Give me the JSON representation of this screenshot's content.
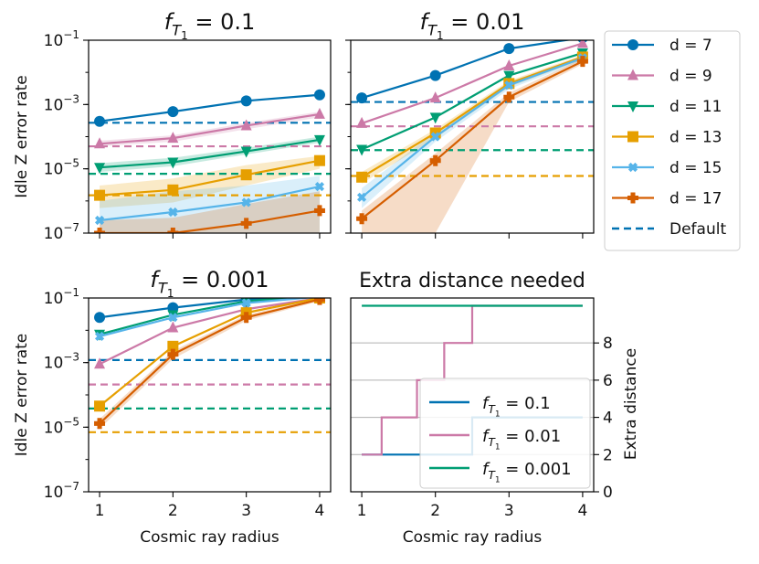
{
  "chart_data": [
    {
      "type": "line",
      "title": "f_{T_1} = 0.1",
      "title_parts": {
        "base": "f",
        "sub": "T",
        "subsub": "1",
        "rest": " = 0.1"
      },
      "xlabel": "",
      "ylabel": "Idle Z error rate",
      "y_scale": "log",
      "ylim": [
        1e-07,
        0.1
      ],
      "xlim": [
        0.85,
        4.15
      ],
      "x_ticks": [
        1,
        2,
        3,
        4
      ],
      "show_x_tick_labels": false,
      "y_ticks": [
        {
          "value": 1e-07,
          "mant": "10",
          "exp": "−7"
        },
        {
          "value": 1e-05,
          "mant": "10",
          "exp": "−5"
        },
        {
          "value": 0.001,
          "mant": "10",
          "exp": "−3"
        },
        {
          "value": 0.1,
          "mant": "10",
          "exp": "−1"
        }
      ],
      "series": [
        {
          "name": "d = 7",
          "key": "d7",
          "x": [
            1,
            2,
            3,
            4
          ],
          "y": [
            0.0003,
            0.0006,
            0.0013,
            0.002
          ],
          "band_low": null,
          "band_high": null,
          "default": 0.00027
        },
        {
          "name": "d = 9",
          "key": "d9",
          "x": [
            1,
            2,
            3,
            4
          ],
          "y": [
            6e-05,
            9e-05,
            0.00022,
            0.0005
          ],
          "band_low": [
            5e-05,
            7e-05,
            0.00017,
            0.0004
          ],
          "band_high": [
            7.5e-05,
            0.00011,
            0.00027,
            0.0006
          ],
          "default": 5e-05
        },
        {
          "name": "d = 11",
          "key": "d11",
          "x": [
            1,
            2,
            3,
            4
          ],
          "y": [
            1.1e-05,
            1.6e-05,
            3.5e-05,
            8e-05
          ],
          "band_low": [
            8e-06,
            1.2e-05,
            2.8e-05,
            6.5e-05
          ],
          "band_high": [
            1.5e-05,
            2.2e-05,
            4.5e-05,
            0.0001
          ],
          "default": 7e-06
        },
        {
          "name": "d = 13",
          "key": "d13",
          "x": [
            1,
            2,
            3,
            4
          ],
          "y": [
            1.5e-06,
            2.2e-06,
            6.5e-06,
            1.8e-05
          ],
          "band_low": [
            6e-07,
            9e-07,
            3e-06,
            1e-05
          ],
          "band_high": [
            3e-06,
            5e-06,
            1.3e-05,
            2.5e-05
          ],
          "default": 1.5e-06
        },
        {
          "name": "d = 15",
          "key": "d15",
          "x": [
            1,
            2,
            3,
            4
          ],
          "y": [
            2.5e-07,
            4.5e-07,
            9e-07,
            2.8e-06
          ],
          "band_low": [
            1e-07,
            1e-07,
            1e-07,
            1e-07
          ],
          "band_high": [
            1e-06,
            2e-06,
            3e-06,
            6e-06
          ],
          "default": null
        },
        {
          "name": "d = 17",
          "key": "d17",
          "x": [
            1,
            2,
            3,
            4
          ],
          "y": [
            1e-07,
            1e-07,
            2e-07,
            5e-07
          ],
          "band_low": [
            1e-07,
            1e-07,
            1e-07,
            1e-07
          ],
          "band_high": [
            2.5e-07,
            3e-07,
            8e-07,
            2e-06
          ],
          "default": null
        }
      ]
    },
    {
      "type": "line",
      "title": "f_{T_1} = 0.01",
      "title_parts": {
        "base": "f",
        "sub": "T",
        "subsub": "1",
        "rest": " = 0.01"
      },
      "xlabel": "",
      "ylabel": "",
      "y_scale": "log",
      "ylim": [
        1e-07,
        0.1
      ],
      "xlim": [
        0.85,
        4.15
      ],
      "x_ticks": [
        1,
        2,
        3,
        4
      ],
      "show_x_tick_labels": false,
      "show_y_tick_labels": false,
      "series": [
        {
          "name": "d = 7",
          "key": "d7",
          "x": [
            1,
            2,
            3,
            4
          ],
          "y": [
            0.0016,
            0.008,
            0.055,
            0.12
          ],
          "band_low": null,
          "band_high": null,
          "default": 0.0012
        },
        {
          "name": "d = 9",
          "key": "d9",
          "x": [
            1,
            2,
            3,
            4
          ],
          "y": [
            0.00026,
            0.0016,
            0.016,
            0.08
          ],
          "band_low": null,
          "band_high": null,
          "default": 0.00021
        },
        {
          "name": "d = 11",
          "key": "d11",
          "x": [
            1,
            2,
            3,
            4
          ],
          "y": [
            4e-05,
            0.0004,
            0.008,
            0.04
          ],
          "band_low": null,
          "band_high": null,
          "default": 3.8e-05
        },
        {
          "name": "d = 13",
          "key": "d13",
          "x": [
            1,
            2,
            3,
            4
          ],
          "y": [
            5.5e-06,
            0.00013,
            0.0045,
            0.03
          ],
          "band_low": [
            3.5e-06,
            9e-05,
            0.0035,
            0.025
          ],
          "band_high": [
            8e-06,
            0.00017,
            0.0055,
            0.035
          ],
          "default": 6e-06
        },
        {
          "name": "d = 15",
          "key": "d15",
          "x": [
            1,
            2,
            3,
            4
          ],
          "y": [
            1.3e-06,
            0.0001,
            0.004,
            0.028
          ],
          "band_low": [
            6e-07,
            7e-05,
            0.003,
            0.023
          ],
          "band_high": [
            2.5e-06,
            0.00014,
            0.005,
            0.033
          ],
          "default": null
        },
        {
          "name": "d = 17",
          "key": "d17",
          "x": [
            1,
            2,
            3,
            4
          ],
          "y": [
            2.8e-07,
            1.8e-05,
            0.0017,
            0.022
          ],
          "band_low": [
            1e-07,
            1e-07,
            0.0012,
            0.018
          ],
          "band_high": [
            5e-07,
            3e-05,
            0.0023,
            0.027
          ],
          "default": null
        }
      ]
    },
    {
      "type": "line",
      "title": "f_{T_1} = 0.001",
      "title_parts": {
        "base": "f",
        "sub": "T",
        "subsub": "1",
        "rest": " = 0.001"
      },
      "xlabel": "Cosmic ray radius",
      "ylabel": "Idle Z error rate",
      "y_scale": "log",
      "ylim": [
        1e-07,
        0.1
      ],
      "xlim": [
        0.85,
        4.15
      ],
      "x_ticks": [
        1,
        2,
        3,
        4
      ],
      "show_x_tick_labels": true,
      "y_ticks": [
        {
          "value": 1e-07,
          "mant": "10",
          "exp": "−7"
        },
        {
          "value": 1e-05,
          "mant": "10",
          "exp": "−5"
        },
        {
          "value": 0.001,
          "mant": "10",
          "exp": "−3"
        },
        {
          "value": 0.1,
          "mant": "10",
          "exp": "−1"
        }
      ],
      "series": [
        {
          "name": "d = 7",
          "key": "d7",
          "x": [
            1,
            2,
            3,
            4
          ],
          "y": [
            0.025,
            0.05,
            0.09,
            0.12
          ],
          "band_low": null,
          "band_high": null,
          "default": 0.0012
        },
        {
          "name": "d = 9",
          "key": "d9",
          "x": [
            1,
            2,
            3,
            4
          ],
          "y": [
            0.0009,
            0.012,
            0.045,
            0.1
          ],
          "band_low": null,
          "band_high": null,
          "default": 0.00021
        },
        {
          "name": "d = 11",
          "key": "d11",
          "x": [
            1,
            2,
            3,
            4
          ],
          "y": [
            0.0075,
            0.03,
            0.08,
            0.12
          ],
          "band_low": null,
          "band_high": null,
          "default": 3.8e-05
        },
        {
          "name": "d = 13",
          "key": "d13",
          "x": [
            1,
            2,
            3,
            4
          ],
          "y": [
            4.5e-05,
            0.0032,
            0.035,
            0.1
          ],
          "band_low": null,
          "band_high": null,
          "default": 7e-06
        },
        {
          "name": "d = 15",
          "key": "d15",
          "x": [
            1,
            2,
            3,
            4
          ],
          "y": [
            0.0065,
            0.025,
            0.07,
            0.11
          ],
          "band_low": null,
          "band_high": null,
          "default": null
        },
        {
          "name": "d = 17",
          "key": "d17",
          "x": [
            1,
            2,
            3,
            4
          ],
          "y": [
            1.3e-05,
            0.0018,
            0.025,
            0.09
          ],
          "band_low": [
            9e-06,
            0.0013,
            0.02,
            0.08
          ],
          "band_high": [
            1.8e-05,
            0.0023,
            0.03,
            0.1
          ],
          "default": null
        }
      ]
    },
    {
      "type": "line",
      "subtype": "step",
      "title": "Extra distance needed",
      "xlabel": "Cosmic ray radius",
      "ylabel": "Extra distance",
      "ylabel_side": "right",
      "ylim": [
        0,
        10
      ],
      "xlim": [
        0.85,
        4.15
      ],
      "x_ticks": [
        1,
        2,
        3,
        4
      ],
      "y_ticks": [
        0,
        2,
        4,
        6,
        8
      ],
      "grid": "horizontal",
      "series": [
        {
          "name": "f_{T_1} = 0.1",
          "key": "f01",
          "label_rest": " = 0.1",
          "x": [
            1,
            1.3,
            2.5,
            2.5,
            4
          ],
          "y": [
            2,
            2,
            2,
            4,
            4
          ]
        },
        {
          "name": "f_{T_1} = 0.01",
          "key": "f001",
          "label_rest": " = 0.01",
          "x": [
            1,
            1.27,
            1.27,
            1.75,
            1.75,
            2.12,
            2.12,
            2.5,
            2.5,
            4
          ],
          "y": [
            2,
            2,
            4,
            4,
            6,
            6,
            8,
            8,
            10,
            10
          ]
        },
        {
          "name": "f_{T_1} = 0.001",
          "key": "f0001",
          "label_rest": " = 0.001",
          "x": [
            1,
            4
          ],
          "y": [
            10,
            10
          ]
        }
      ]
    }
  ],
  "legend": {
    "placement": "right of top-right panel",
    "items": [
      {
        "key": "d7",
        "label": "d = 7",
        "marker": "circle"
      },
      {
        "key": "d9",
        "label": "d = 9",
        "marker": "triangle-up"
      },
      {
        "key": "d11",
        "label": "d = 11",
        "marker": "triangle-down"
      },
      {
        "key": "d13",
        "label": "d = 13",
        "marker": "square"
      },
      {
        "key": "d15",
        "label": "d = 15",
        "marker": "x"
      },
      {
        "key": "d17",
        "label": "d = 17",
        "marker": "plus"
      },
      {
        "key": "default",
        "label": "Default",
        "marker": "dashed"
      }
    ]
  },
  "colors": {
    "d7": "#0072b2",
    "d9": "#cc79a7",
    "d11": "#009e73",
    "d13": "#e69f00",
    "d15": "#56b4e9",
    "d17": "#d55e00",
    "default": "#0072b2",
    "f01": "#0072b2",
    "f001": "#cc79a7",
    "f0001": "#009e73",
    "grid": "#b0b0b0"
  }
}
